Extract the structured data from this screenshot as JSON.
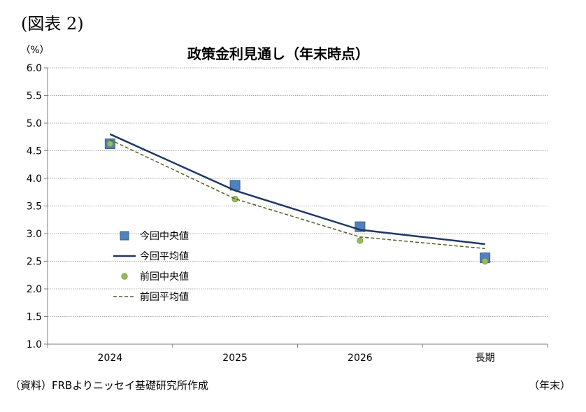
{
  "figure_label": "(図表 2)",
  "source_note": "（資料）FRBよりニッセイ基礎研究所作成",
  "unit_note": "（年末）",
  "chart_data": {
    "type": "line",
    "title": "政策金利見通し（年末時点）",
    "ylabel": "（%）",
    "xlabel": "",
    "ylim": [
      1.0,
      6.0
    ],
    "yticks": [
      "1.0",
      "1.5",
      "2.0",
      "2.5",
      "3.0",
      "3.5",
      "4.0",
      "4.5",
      "5.0",
      "5.5",
      "6.0"
    ],
    "categories": [
      "2024",
      "2025",
      "2026",
      "長期"
    ],
    "grid": true,
    "legend_position": "center-left",
    "series": [
      {
        "name": "今回中央値",
        "kind": "marker-square",
        "color": "#4f81bd",
        "values": [
          4.625,
          3.875,
          3.125,
          2.5625
        ]
      },
      {
        "name": "今回平均値",
        "kind": "solid-line",
        "color": "#1f3864",
        "values": [
          4.8,
          3.78,
          3.07,
          2.81
        ]
      },
      {
        "name": "前回中央値",
        "kind": "marker-circle",
        "color": "#9bbb59",
        "values": [
          4.625,
          3.625,
          2.875,
          2.5
        ]
      },
      {
        "name": "前回平均値",
        "kind": "dashed-line",
        "color": "#4f6228",
        "values": [
          4.7,
          3.63,
          2.94,
          2.73
        ]
      }
    ]
  }
}
